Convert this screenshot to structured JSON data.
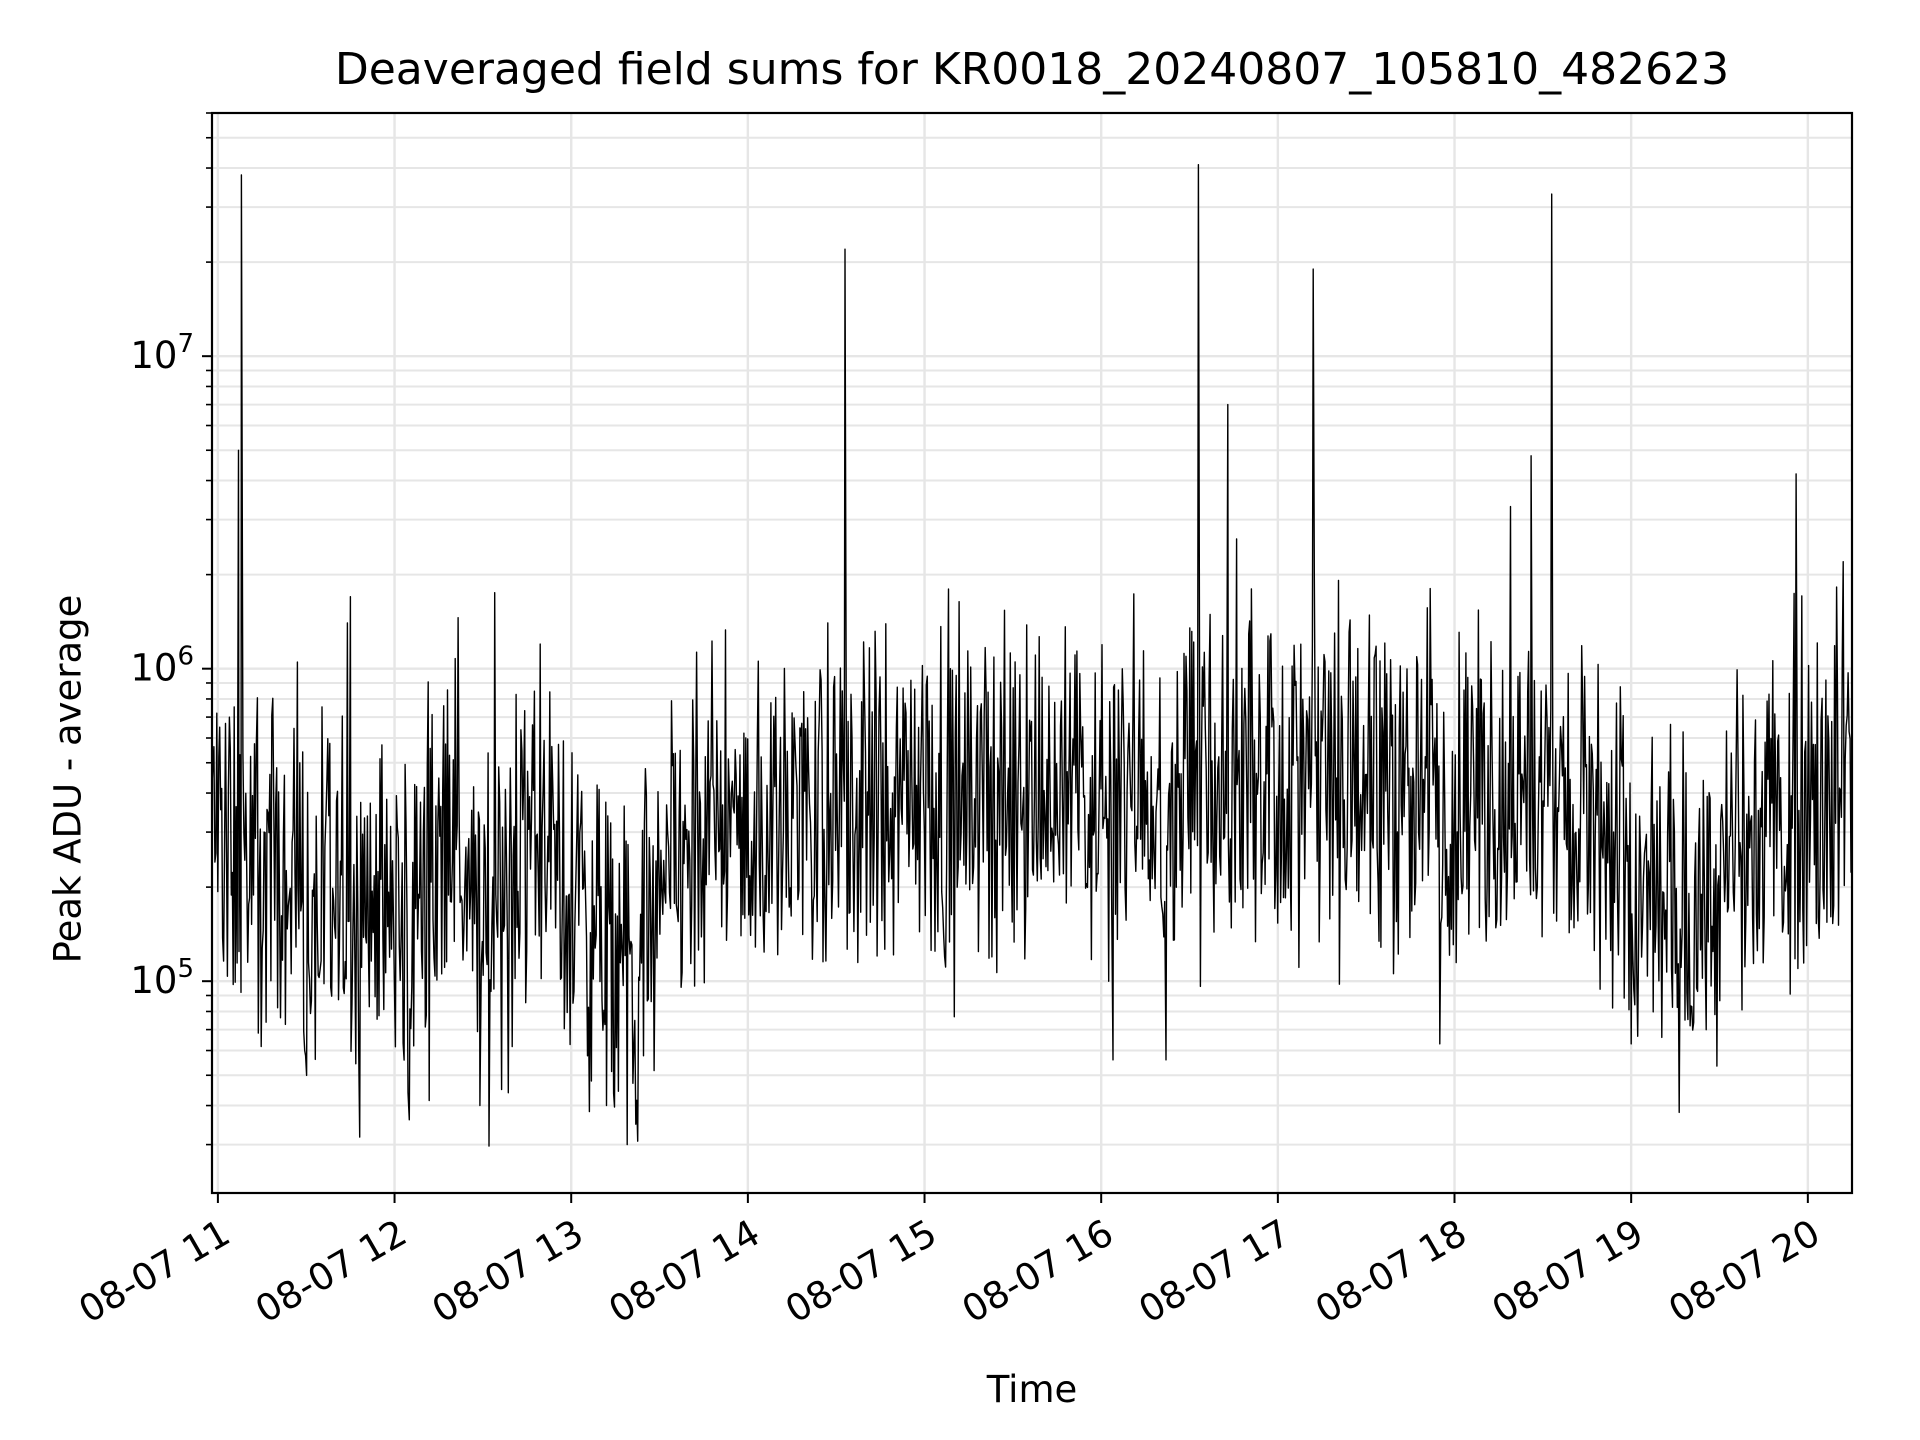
{
  "chart_data": {
    "type": "line",
    "title": "Deaveraged field sums for KR0018_20240807_105810_482623",
    "xlabel": "Time",
    "ylabel": "Peak ADU - average",
    "x_axis": {
      "type": "datetime",
      "range": [
        "2024-08-07 10:58",
        "2024-08-07 20:15"
      ],
      "ticks": [
        "08-07 11",
        "08-07 12",
        "08-07 13",
        "08-07 14",
        "08-07 15",
        "08-07 16",
        "08-07 17",
        "08-07 18",
        "08-07 19",
        "08-07 20"
      ]
    },
    "y_axis": {
      "scale": "log",
      "range": [
        21000,
        60000000
      ],
      "ticks": [
        {
          "value": 100000,
          "base": "10",
          "exp": "5"
        },
        {
          "value": 1000000,
          "base": "10",
          "exp": "6"
        },
        {
          "value": 10000000,
          "base": "10",
          "exp": "7"
        }
      ]
    },
    "grid": true,
    "series": [
      {
        "color": "#000000",
        "time": [
          "2024-08-07 10:58",
          "2024-08-07 11:00",
          "2024-08-07 11:05",
          "2024-08-07 11:10",
          "2024-08-07 11:20",
          "2024-08-07 11:30",
          "2024-08-07 11:40",
          "2024-08-07 11:50",
          "2024-08-07 12:00",
          "2024-08-07 12:10",
          "2024-08-07 12:20",
          "2024-08-07 12:30",
          "2024-08-07 12:40",
          "2024-08-07 12:50",
          "2024-08-07 13:00",
          "2024-08-07 13:10",
          "2024-08-07 13:20",
          "2024-08-07 13:30",
          "2024-08-07 13:40",
          "2024-08-07 13:50",
          "2024-08-07 14:00",
          "2024-08-07 14:15",
          "2024-08-07 14:30",
          "2024-08-07 14:45",
          "2024-08-07 15:00",
          "2024-08-07 15:15",
          "2024-08-07 15:30",
          "2024-08-07 15:45",
          "2024-08-07 16:00",
          "2024-08-07 16:15",
          "2024-08-07 16:30",
          "2024-08-07 16:45",
          "2024-08-07 17:00",
          "2024-08-07 17:15",
          "2024-08-07 17:30",
          "2024-08-07 17:45",
          "2024-08-07 18:00",
          "2024-08-07 18:15",
          "2024-08-07 18:30",
          "2024-08-07 18:45",
          "2024-08-07 19:00",
          "2024-08-07 19:10",
          "2024-08-07 19:20",
          "2024-08-07 19:30",
          "2024-08-07 19:40",
          "2024-08-07 19:50",
          "2024-08-07 20:00",
          "2024-08-07 20:10",
          "2024-08-07 20:15"
        ],
        "baseline": [
          380000,
          300000,
          250000,
          220000,
          240000,
          170000,
          160000,
          200000,
          150000,
          190000,
          380000,
          150000,
          170000,
          400000,
          190000,
          130000,
          100000,
          160000,
          280000,
          330000,
          260000,
          370000,
          360000,
          380000,
          380000,
          390000,
          400000,
          410000,
          420000,
          430000,
          440000,
          450000,
          450000,
          430000,
          420000,
          410000,
          400000,
          390000,
          380000,
          340000,
          200000,
          160000,
          150000,
          190000,
          260000,
          330000,
          400000,
          480000,
          550000
        ]
      }
    ],
    "spikes": [
      {
        "time": "2024-08-07 11:08",
        "value": 38000000
      },
      {
        "time": "2024-08-07 11:07",
        "value": 5000000
      },
      {
        "time": "2024-08-07 11:45",
        "value": 1700000
      },
      {
        "time": "2024-08-07 11:44",
        "value": 1400000
      },
      {
        "time": "2024-08-07 12:34",
        "value": 1750000
      },
      {
        "time": "2024-08-07 11:27",
        "value": 1050000
      },
      {
        "time": "2024-08-07 14:33",
        "value": 22000000
      },
      {
        "time": "2024-08-07 16:33",
        "value": 41000000
      },
      {
        "time": "2024-08-07 16:43",
        "value": 7000000
      },
      {
        "time": "2024-08-07 16:46",
        "value": 2600000
      },
      {
        "time": "2024-08-07 16:51",
        "value": 1800000
      },
      {
        "time": "2024-08-07 17:12",
        "value": 19000000
      },
      {
        "time": "2024-08-07 18:19",
        "value": 3300000
      },
      {
        "time": "2024-08-07 18:26",
        "value": 4800000
      },
      {
        "time": "2024-08-07 18:33",
        "value": 33000000
      },
      {
        "time": "2024-08-07 19:56",
        "value": 4200000
      },
      {
        "time": "2024-08-07 20:12",
        "value": 2200000
      }
    ],
    "dips": [
      {
        "time": "2024-08-07 12:05",
        "value": 36000.0
      },
      {
        "time": "2024-08-07 12:29",
        "value": 40000
      },
      {
        "time": "2024-08-07 13:19",
        "value": 30000
      },
      {
        "time": "2024-08-07 13:12",
        "value": 40000
      },
      {
        "time": "2024-08-07 16:04",
        "value": 56000
      },
      {
        "time": "2024-08-07 16:22",
        "value": 56000
      },
      {
        "time": "2024-08-07 17:55",
        "value": 63000
      },
      {
        "time": "2024-08-07 19:00",
        "value": 63000
      },
      {
        "time": "2024-08-07 19:20",
        "value": 72000
      }
    ]
  }
}
